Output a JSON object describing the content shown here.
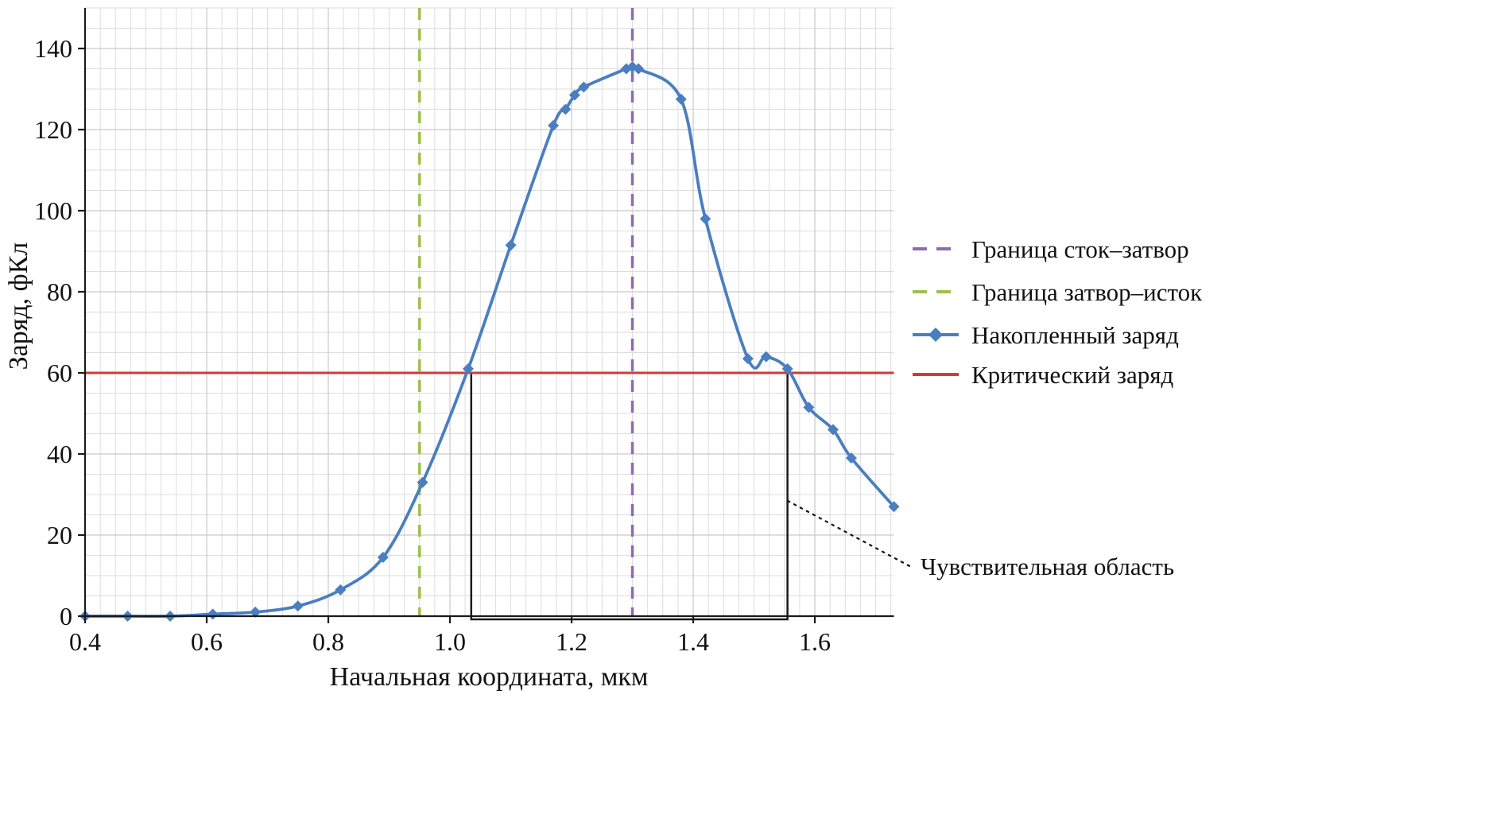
{
  "figure": {
    "background": "#ffffff"
  },
  "chart_data": {
    "type": "line",
    "title": "",
    "xlabel": "Начальная координата, мкм",
    "ylabel": "Заряд, фКл",
    "xlim": [
      0.4,
      1.73
    ],
    "ylim": [
      0,
      150
    ],
    "x_ticks": [
      0.4,
      0.6,
      0.8,
      1.0,
      1.2,
      1.4,
      1.6
    ],
    "y_ticks": [
      0,
      20,
      40,
      60,
      80,
      100,
      120,
      140
    ],
    "x_minor_step": 0.025,
    "y_minor_step": 5,
    "grid": true,
    "legend_position": "right-outside",
    "series": [
      {
        "name": "Накопленный заряд",
        "color": "#4a7ec0",
        "marker": "diamond",
        "x": [
          0.4,
          0.47,
          0.54,
          0.61,
          0.68,
          0.75,
          0.82,
          0.89,
          0.955,
          1.03,
          1.1,
          1.17,
          1.19,
          1.205,
          1.22,
          1.29,
          1.3,
          1.31,
          1.38,
          1.42,
          1.49,
          1.52,
          1.555,
          1.59,
          1.63,
          1.66,
          1.73
        ],
        "y": [
          0,
          0,
          0,
          0.5,
          1,
          2.5,
          6.5,
          14.5,
          33,
          61,
          91.5,
          121,
          125,
          128.5,
          130.5,
          135,
          135.5,
          135,
          127.5,
          98,
          63.5,
          64,
          61,
          51.5,
          46,
          39,
          27
        ]
      }
    ],
    "reference_lines": [
      {
        "name": "Граница сток–затвор",
        "orientation": "vertical",
        "value": 1.3,
        "color": "#8e6bb1",
        "style": "dashed"
      },
      {
        "name": "Граница затвор–исток",
        "orientation": "vertical",
        "value": 0.95,
        "color": "#9dc04c",
        "style": "dashed"
      },
      {
        "name": "Критический заряд",
        "orientation": "horizontal",
        "value": 60,
        "color": "#cf3b3b",
        "style": "solid"
      }
    ],
    "sensitive_region": {
      "x1": 1.035,
      "x2": 1.555,
      "y1": 0,
      "y2": 60,
      "color": "#1a1a1a"
    },
    "annotation": {
      "label": "Чувствительная область"
    }
  },
  "legend": {
    "items": [
      {
        "label": "Граница сток–затвор",
        "color": "#8e6bb1",
        "style": "dashed"
      },
      {
        "label": "Граница затвор–исток",
        "color": "#9dc04c",
        "style": "dashed"
      },
      {
        "label": "Накопленный заряд",
        "color": "#4a7ec0",
        "style": "solid-marker"
      },
      {
        "label": "Критический заряд",
        "color": "#cf3b3b",
        "style": "solid"
      }
    ]
  }
}
